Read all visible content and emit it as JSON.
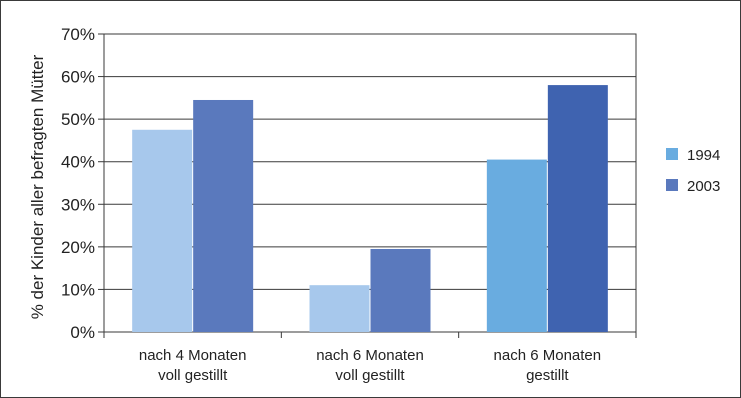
{
  "chart_data": {
    "type": "bar",
    "ylabel": "% der Kinder aller befragten Mütter",
    "ylim": [
      0,
      70
    ],
    "yticks": [
      0,
      10,
      20,
      30,
      40,
      50,
      60,
      70
    ],
    "ytick_suffix": "%",
    "grid": true,
    "legend_position": "right",
    "categories": [
      [
        "nach 4 Monaten",
        "voll gestillt"
      ],
      [
        "nach 6 Monaten",
        "voll gestillt"
      ],
      [
        "nach 6 Monaten",
        "gestillt"
      ]
    ],
    "series": [
      {
        "name": "1994",
        "values": [
          47.5,
          11,
          40.5
        ]
      },
      {
        "name": "2003",
        "values": [
          54.5,
          19.5,
          58
        ]
      }
    ],
    "bar_colors": [
      [
        "#a7c8ec",
        "#a7c8ec",
        "#69ace0"
      ],
      [
        "#5a79bd",
        "#5a79bd",
        "#3f63b0"
      ]
    ],
    "legend_colors": [
      "#69ace0",
      "#5a79bd"
    ]
  }
}
